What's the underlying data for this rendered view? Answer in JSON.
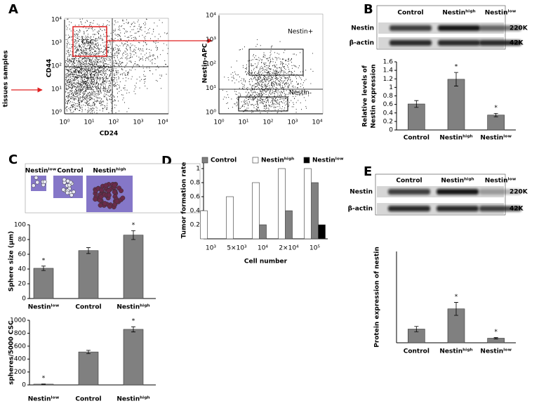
{
  "panel_labels": [
    "A",
    "B",
    "C",
    "D",
    "E"
  ],
  "flow": {
    "left": {
      "side_label": "tissues samples",
      "xlabel": "CD24",
      "ylabel": "CD44",
      "gate": "CSC",
      "xticks": [
        "10⁰",
        "10¹",
        "10²",
        "10³",
        "10⁴"
      ],
      "yticks": [
        "10⁴",
        "10³",
        "10²",
        "10¹",
        "10⁰"
      ]
    },
    "right": {
      "ylabel": "Nestin-APC",
      "gates": [
        "Nestin+",
        "Nestin-"
      ],
      "xticks": [
        "10⁰",
        "10¹",
        "10²",
        "10³",
        "10⁴"
      ],
      "yticks": [
        "10⁴",
        "10³",
        "10²",
        "10¹",
        "10⁰"
      ]
    }
  },
  "blots": {
    "B": {
      "lanes": [
        "Control",
        "Nestinʰⁱᵍʰ",
        "Nestinˡᵒʷ"
      ],
      "rows": [
        {
          "name": "Nestin",
          "size": "220K"
        },
        {
          "name": "β-actin",
          "size": "42K"
        }
      ]
    },
    "E": {
      "lanes": [
        "Control",
        "Nestinʰⁱᵍʰ",
        "Nestinˡᵒʷ"
      ],
      "rows": [
        {
          "name": "Nestin",
          "size": "220K"
        },
        {
          "name": "β-actin",
          "size": "42K"
        }
      ]
    }
  },
  "sphere_images": {
    "labels": [
      "Nestinˡᵒʷ",
      "Control",
      "Nestinʰⁱᵍʰ"
    ]
  },
  "chart_data": [
    {
      "type": "bar",
      "categories": [
        "Control",
        "Nestinʰⁱᵍʰ",
        "Nestinˡᵒʷ"
      ],
      "values": [
        0.61,
        1.19,
        0.35
      ],
      "errors": [
        0.08,
        0.16,
        0.04
      ],
      "annotations": [
        null,
        "*",
        "*"
      ],
      "color": "#808080",
      "ylim": [
        0,
        1.6
      ],
      "yticks": [
        0,
        0.2,
        0.4,
        0.6,
        0.8,
        1,
        1.2,
        1.4,
        1.6
      ],
      "ylabel": [
        "Relative levels of",
        "Nestin expression"
      ]
    },
    {
      "type": "bar",
      "categories": [
        "Nestinˡᵒʷ",
        "Control",
        "Nestinʰⁱᵍʰ"
      ],
      "values": [
        41,
        65,
        86
      ],
      "errors": [
        3,
        4,
        6
      ],
      "annotations": [
        "*",
        null,
        "*"
      ],
      "color": "#808080",
      "ylim": [
        0,
        100
      ],
      "yticks": [
        0,
        20,
        40,
        60,
        80,
        100
      ],
      "ylabel": "Sphere size (μm)"
    },
    {
      "type": "bar",
      "categories": [
        "Nestinˡᵒʷ",
        "Control",
        "Nestinʰⁱᵍʰ"
      ],
      "values": [
        12,
        510,
        860
      ],
      "errors": [
        3,
        25,
        40
      ],
      "annotations": [
        "*",
        null,
        "*"
      ],
      "color": "#808080",
      "ylim": [
        0,
        1000
      ],
      "yticks": [
        0,
        200,
        400,
        600,
        800,
        1000
      ],
      "ylabel": "spheres/5000 CSC"
    },
    {
      "type": "grouped_bar",
      "categories": [
        "10³",
        "5×10³",
        "10⁴",
        "2×10⁴",
        "10⁵"
      ],
      "series": [
        {
          "name": "Control",
          "color": "#808080",
          "values": [
            0,
            0,
            0.2,
            0.4,
            0.8
          ]
        },
        {
          "name": "Nestinʰⁱᵍʰ",
          "color": "#ffffff",
          "values": [
            0.4,
            0.6,
            0.8,
            1,
            1
          ]
        },
        {
          "name": "Nestinˡᵒʷ",
          "color": "#000000",
          "values": [
            0,
            0,
            0,
            0,
            0.2
          ]
        }
      ],
      "ylim": [
        0,
        1.1
      ],
      "yticks": [
        0.2,
        0.4,
        0.6,
        0.8,
        1
      ],
      "ylabel": "Tumor formation rate",
      "xlabel": "Cell number"
    },
    {
      "type": "bar",
      "categories": [
        "Control",
        "Nestinʰⁱᵍʰ",
        "Nestinˡᵒʷ"
      ],
      "values": [
        0.21,
        0.52,
        0.07
      ],
      "errors": [
        0.04,
        0.1,
        0.01
      ],
      "annotations": [
        null,
        "*",
        "*"
      ],
      "color": "#808080",
      "ylim": [
        0,
        1.4
      ],
      "ylabel": "Protein expression of nestin"
    }
  ]
}
